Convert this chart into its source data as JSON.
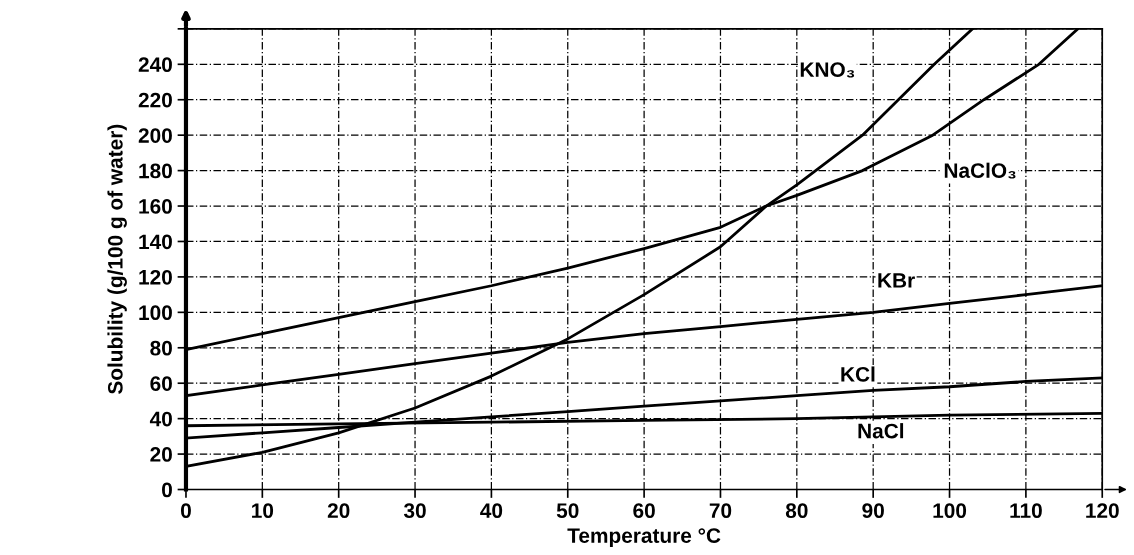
{
  "chart_data": {
    "type": "line",
    "xlabel": "Temperature °C",
    "ylabel": "Solubility (g/100 g of water)",
    "xlim": [
      0,
      120
    ],
    "ylim": [
      0,
      260
    ],
    "xticks": [
      0,
      10,
      20,
      30,
      40,
      50,
      60,
      70,
      80,
      90,
      100,
      110,
      120
    ],
    "yticks": [
      0,
      20,
      40,
      60,
      80,
      100,
      120,
      140,
      160,
      180,
      200,
      220,
      240,
      {
        "value": 260,
        "label": null
      }
    ],
    "grid": true,
    "marker": "none",
    "line_style": "solid",
    "series": [
      {
        "name": "KNO₃",
        "color": "#000000",
        "x": [
          0,
          10,
          20,
          30,
          40,
          50,
          60,
          70,
          76,
          80,
          88.6,
          98,
          103
        ],
        "values": [
          13,
          21,
          32,
          46,
          64,
          85,
          110,
          137,
          160,
          172,
          200,
          240,
          260
        ]
      },
      {
        "name": "NaClO₃",
        "color": "#000000",
        "x": [
          0,
          10,
          20,
          30,
          40,
          50,
          60,
          70,
          76,
          80,
          88.6,
          97.8,
          104.5,
          111.7,
          116.8
        ],
        "values": [
          79,
          88,
          97,
          106,
          115,
          125,
          136,
          148,
          160,
          166,
          180,
          200,
          220,
          240,
          260
        ]
      },
      {
        "name": "KBr",
        "color": "#000000",
        "x": [
          0,
          10,
          20,
          30,
          40,
          50,
          60,
          70,
          80,
          90,
          100,
          110,
          120
        ],
        "values": [
          53,
          59,
          65,
          71,
          77,
          83,
          88,
          92,
          96,
          100,
          105,
          110,
          115
        ]
      },
      {
        "name": "KCl",
        "color": "#000000",
        "x": [
          0,
          10,
          20,
          30,
          40,
          50,
          60,
          70,
          80,
          90,
          100,
          110,
          120
        ],
        "values": [
          29,
          32,
          35,
          38,
          41,
          44,
          47,
          50,
          53,
          56,
          58,
          61,
          63
        ]
      },
      {
        "name": "NaCl",
        "color": "#000000",
        "x": [
          0,
          20,
          40,
          60,
          80,
          100,
          120
        ],
        "values": [
          36,
          37,
          38,
          39,
          40,
          42,
          43
        ]
      }
    ]
  }
}
